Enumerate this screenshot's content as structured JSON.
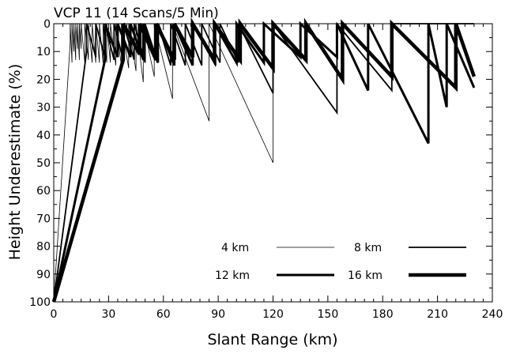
{
  "chart_data": {
    "type": "line",
    "title": "VCP 11 (14 Scans/5 Min)",
    "xlabel": "Slant Range (km)",
    "ylabel": "Height Underestimate (%)",
    "xlim": [
      0,
      240
    ],
    "ylim": [
      100,
      0
    ],
    "y_inverted": true,
    "x_ticks": [
      0,
      30,
      60,
      90,
      120,
      150,
      180,
      210,
      240
    ],
    "y_ticks": [
      0,
      10,
      20,
      30,
      40,
      50,
      60,
      70,
      80,
      90,
      100
    ],
    "grid": false,
    "legend_position": "lower-right",
    "series": [
      {
        "name": "4 km",
        "line_weight": "thin",
        "x": [
          0,
          9,
          9,
          10,
          10,
          11,
          11,
          12,
          12,
          13,
          13,
          14,
          14,
          15,
          15,
          17,
          17,
          19,
          19,
          21,
          21,
          23,
          23,
          25,
          25,
          27,
          27,
          29,
          29,
          31,
          31,
          34,
          34,
          37,
          37,
          41,
          41,
          45,
          45,
          49,
          49,
          55,
          55,
          65,
          65,
          85,
          85,
          120,
          120,
          220
        ],
        "y": [
          100,
          7,
          0,
          14,
          0,
          10,
          0,
          13,
          0,
          9,
          0,
          13,
          0,
          9,
          0,
          14,
          0,
          13,
          0,
          14,
          0,
          14,
          0,
          14,
          0,
          14,
          0,
          14,
          0,
          14,
          0,
          15,
          0,
          15,
          0,
          16,
          0,
          17,
          0,
          21,
          0,
          19,
          0,
          27,
          0,
          35,
          0,
          50,
          0,
          0
        ]
      },
      {
        "name": "8 km",
        "line_weight": "medium",
        "x": [
          0,
          18,
          18,
          23,
          23,
          28,
          28,
          33,
          33,
          38,
          38,
          44,
          44,
          50,
          50,
          57,
          57,
          64,
          64,
          72,
          72,
          81,
          81,
          91,
          91,
          101,
          101,
          120,
          120,
          155,
          155,
          185,
          185,
          230
        ],
        "y": [
          100,
          10,
          0,
          12,
          0,
          12,
          0,
          13,
          0,
          13,
          0,
          13,
          0,
          14,
          0,
          14,
          0,
          15,
          0,
          15,
          0,
          15,
          0,
          14,
          0,
          14,
          0,
          25,
          0,
          32,
          0,
          24,
          0,
          0
        ]
      },
      {
        "name": "12 km",
        "line_weight": "thick",
        "x": [
          0,
          28,
          28,
          35,
          35,
          42,
          42,
          49,
          49,
          57,
          57,
          66,
          66,
          76,
          76,
          88,
          88,
          100,
          100,
          115,
          115,
          135,
          135,
          155,
          155,
          172,
          172,
          205,
          205,
          215,
          215,
          230
        ],
        "y": [
          100,
          13,
          0,
          12,
          0,
          12,
          0,
          13,
          0,
          14,
          0,
          15,
          0,
          15,
          0,
          14,
          0,
          14,
          0,
          14,
          0,
          12,
          0,
          12,
          0,
          24,
          0,
          43,
          0,
          30,
          0,
          23
        ]
      },
      {
        "name": "16 km",
        "line_weight": "extra-thick",
        "x": [
          0,
          38,
          38,
          47,
          47,
          56,
          56,
          66,
          66,
          76,
          76,
          88,
          88,
          102,
          102,
          120,
          120,
          138,
          138,
          158,
          158,
          185,
          185,
          220,
          220,
          230
        ],
        "y": [
          100,
          13,
          0,
          11,
          0,
          13,
          0,
          13,
          0,
          12,
          0,
          13,
          0,
          13,
          0,
          16,
          0,
          13,
          0,
          20,
          0,
          19,
          0,
          23,
          0,
          19
        ]
      }
    ]
  }
}
